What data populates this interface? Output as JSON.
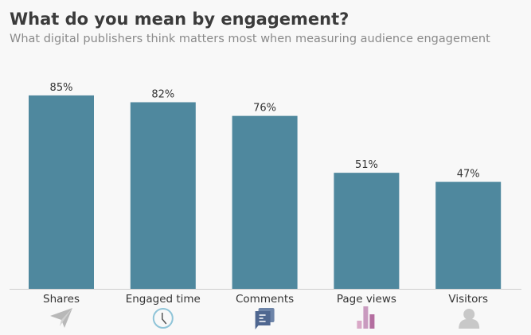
{
  "chart_data": {
    "type": "bar",
    "title": "What do you mean by engagement?",
    "subtitle": "What digital publishers think matters most when measuring audience engagement",
    "categories": [
      "Shares",
      "Engaged time",
      "Comments",
      "Page views",
      "Visitors"
    ],
    "values": [
      85,
      82,
      76,
      51,
      47
    ],
    "data_labels": [
      "85%",
      "82%",
      "76%",
      "51%",
      "47%"
    ],
    "ylim": [
      0,
      100
    ],
    "grid": false,
    "bar_color": "#4f889e",
    "icons": [
      "paper-plane-icon",
      "clock-icon",
      "comments-icon",
      "bar-chart-icon",
      "user-icon"
    ]
  }
}
